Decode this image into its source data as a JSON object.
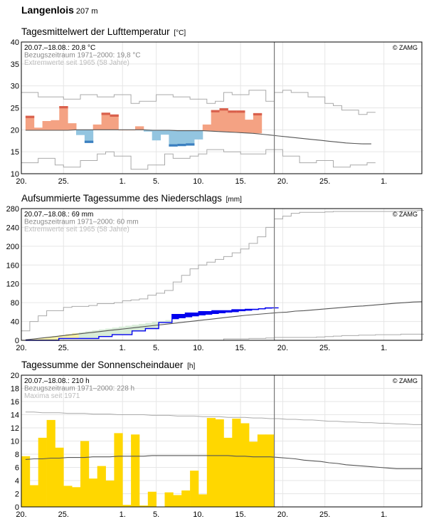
{
  "station": {
    "name": "Langenlois",
    "altitude": "207 m"
  },
  "colors": {
    "warm_above": "#f4a283",
    "warm_above_record": "#d9604c",
    "cool_below": "#93c5e0",
    "cool_below_record": "#3b7fc0",
    "precip_above": "#0000ee",
    "precip_below": "#d8ecd8",
    "precip_early": "#f6f0a8",
    "sunshine": "#ffd700",
    "ref_line": "#555555",
    "extreme_line": "#aaaaaa",
    "grid": "#e6e6e6"
  },
  "chart_data": [
    {
      "id": "temp",
      "type": "bar",
      "title": "Tagesmittelwert der Lufttemperatur",
      "unit": "[°C]",
      "ylim": [
        10,
        40
      ],
      "yticks": [
        10,
        15,
        20,
        25,
        30,
        35,
        40
      ],
      "xticks": [
        "20.",
        "25.",
        "1.",
        "5.",
        "10.",
        "15.",
        "20.",
        "25.",
        "1."
      ],
      "copyright": "© ZAMG",
      "legend": [
        "20.07.–18.08.: 20,8 °C",
        "Bezugszeitraum 1971–2000: 19,8 °C",
        "Extremwerte seit 1965 (58 Jahre)"
      ],
      "values": [
        23.2,
        20.5,
        22,
        22.2,
        25.4,
        21.5,
        18.8,
        17,
        21.2,
        23.9,
        23.5,
        20,
        20,
        20.8,
        19.6,
        17.6,
        18.9,
        16.2,
        16.3,
        16.4,
        17.8,
        21.2,
        24.5,
        24.9,
        24.4,
        24.4,
        22.3,
        23.8
      ],
      "record_days": [
        0,
        4,
        7,
        9,
        10,
        17,
        18,
        19,
        22,
        23,
        24,
        25,
        27
      ],
      "reference_mean": [
        19.9,
        19.9,
        19.9,
        19.9,
        19.9,
        19.9,
        20.0,
        20.0,
        20.0,
        20.0,
        20.0,
        20.0,
        20.0,
        20.0,
        20.0,
        19.9,
        19.9,
        19.9,
        19.8,
        19.8,
        19.8,
        19.8,
        19.7,
        19.6,
        19.5,
        19.4,
        19.3,
        19.2,
        19.0,
        18.8,
        18.6,
        18.4,
        18.2,
        18.0,
        17.8,
        17.6,
        17.4,
        17.2,
        17.0,
        16.9,
        16.8,
        16.8
      ],
      "extreme_max": [
        28.5,
        28.5,
        27.5,
        27.5,
        27.5,
        27,
        27,
        28,
        28,
        27.5,
        27.5,
        28,
        28,
        26,
        26.5,
        26.5,
        28,
        28,
        27.5,
        27.5,
        27,
        27,
        26,
        26.5,
        28.5,
        28,
        28,
        29,
        29,
        26.5,
        28.5,
        29,
        28.5,
        28.5,
        27.5,
        27.5,
        26,
        25.5,
        24.5,
        24.5,
        23.5,
        24
      ],
      "extreme_min": [
        12.5,
        12.5,
        13.5,
        13.5,
        12,
        11.5,
        11.5,
        13,
        13,
        14.5,
        15,
        14,
        14,
        11,
        11,
        12,
        12,
        14.5,
        13.5,
        13.5,
        14,
        14.5,
        15.5,
        15.5,
        15,
        15,
        14.5,
        14.5,
        14.5,
        15.5,
        15.5,
        14,
        14,
        12.5,
        12.5,
        13,
        13,
        11.5,
        11.5,
        12,
        12,
        12.5
      ]
    },
    {
      "id": "precip",
      "type": "area",
      "title": "Aufsummierte Tagessumme des Niederschlags",
      "unit": "[mm]",
      "ylim": [
        0,
        280
      ],
      "yticks": [
        0,
        40,
        80,
        120,
        160,
        200,
        240,
        280
      ],
      "xticks": [
        "20.",
        "25.",
        "1.",
        "5.",
        "10.",
        "15.",
        "20.",
        "25.",
        "1."
      ],
      "copyright": "© ZAMG",
      "legend": [
        "20.07.–18.08.: 69 mm",
        "Bezugszeitraum 1971–2000: 60 mm",
        "Extremwerte seit 1965 (58 Jahre)"
      ],
      "values": [
        0,
        0,
        0,
        0,
        0,
        4,
        4,
        4,
        4,
        4,
        4,
        8,
        8,
        12,
        12,
        12,
        20,
        20,
        25,
        25,
        38,
        38,
        55,
        55,
        58,
        58,
        61,
        61,
        63,
        63,
        63,
        65,
        65,
        66,
        66,
        67,
        69,
        69
      ],
      "reference_cum": [
        1,
        3,
        5,
        7,
        9,
        11,
        13,
        15,
        17,
        19,
        21,
        23,
        25,
        27,
        29,
        31,
        33,
        35,
        37,
        39,
        41,
        43,
        45,
        47,
        49,
        51,
        53,
        54.5,
        56,
        57.5,
        59,
        60,
        62,
        63,
        64.5,
        66,
        67.5,
        69,
        70.5,
        72,
        73,
        74.5,
        76,
        77.5,
        79,
        80,
        81.5,
        82
      ],
      "extreme_max": [
        20,
        40,
        52,
        63,
        63,
        70,
        72,
        72,
        74,
        78,
        78,
        80,
        84,
        86,
        88,
        96,
        100,
        106,
        124,
        138,
        152,
        160,
        166,
        172,
        178,
        186,
        194,
        206,
        220,
        240,
        258,
        264,
        270,
        272,
        272,
        272,
        273,
        274,
        274,
        274,
        274,
        274,
        274,
        274,
        274,
        275,
        275,
        276
      ],
      "extreme_min": [
        0,
        0,
        0,
        0,
        0,
        0,
        0,
        0,
        0,
        0,
        0,
        0,
        0,
        0,
        0,
        0,
        0,
        0,
        0,
        0,
        0,
        0,
        0,
        0,
        3,
        3,
        3,
        4,
        4,
        5,
        6,
        6,
        6,
        6,
        6,
        7,
        8,
        9,
        10,
        10,
        11,
        11,
        12,
        12,
        12,
        13,
        13,
        13
      ]
    },
    {
      "id": "sun",
      "type": "bar",
      "title": "Tagessumme der Sonnenscheindauer",
      "unit": "[h]",
      "ylim": [
        0,
        20
      ],
      "yticks": [
        0,
        2,
        4,
        6,
        8,
        10,
        12,
        14,
        16,
        18,
        20
      ],
      "xticks": [
        "20.",
        "25.",
        "1.",
        "5.",
        "10.",
        "15.",
        "20.",
        "25.",
        "1."
      ],
      "copyright": "© ZAMG",
      "legend": [
        "20.07.–18.08.: 210 h",
        "Bezugszeitraum 1971–2000: 228 h",
        "Maxima seit 1971"
      ],
      "values": [
        7.7,
        3.3,
        10.5,
        13.2,
        9,
        3.2,
        3,
        10,
        4.3,
        6.2,
        4,
        11.2,
        0.3,
        11,
        0.2,
        2.3,
        0,
        2.2,
        1.8,
        2.5,
        5.5,
        1.9,
        13.5,
        13.3,
        10.5,
        13.4,
        12.7,
        9.9,
        11,
        11
      ],
      "reference_mean": [
        7.2,
        7.3,
        7.3,
        7.4,
        7.4,
        7.5,
        7.5,
        7.5,
        7.6,
        7.6,
        7.6,
        7.7,
        7.7,
        7.7,
        7.7,
        7.8,
        7.8,
        7.8,
        7.8,
        7.8,
        7.8,
        7.8,
        7.8,
        7.8,
        7.8,
        7.7,
        7.7,
        7.6,
        7.6,
        7.6,
        7.5,
        7.4,
        7.3,
        7.1,
        7.0,
        6.9,
        6.7,
        6.6,
        6.4,
        6.3,
        6.2,
        6.1,
        6.0,
        5.9,
        5.8,
        5.8,
        5.8,
        5.8
      ],
      "maxima": [
        14.4,
        14.4,
        14.3,
        14.3,
        14.3,
        14.2,
        14.2,
        14.2,
        14.1,
        14.1,
        14.1,
        14.0,
        14.0,
        14.0,
        14.0,
        13.9,
        13.9,
        13.9,
        13.8,
        13.8,
        13.8,
        13.7,
        13.7,
        13.7,
        13.6,
        13.6,
        13.6,
        13.5,
        13.5,
        13.4,
        13.4,
        13.3,
        13.3,
        13.2,
        13.2,
        13.1,
        13.0,
        13.0,
        12.9,
        12.9,
        12.8,
        12.8,
        12.7,
        12.7,
        12.6,
        12.6,
        12.5,
        12.5
      ]
    }
  ]
}
